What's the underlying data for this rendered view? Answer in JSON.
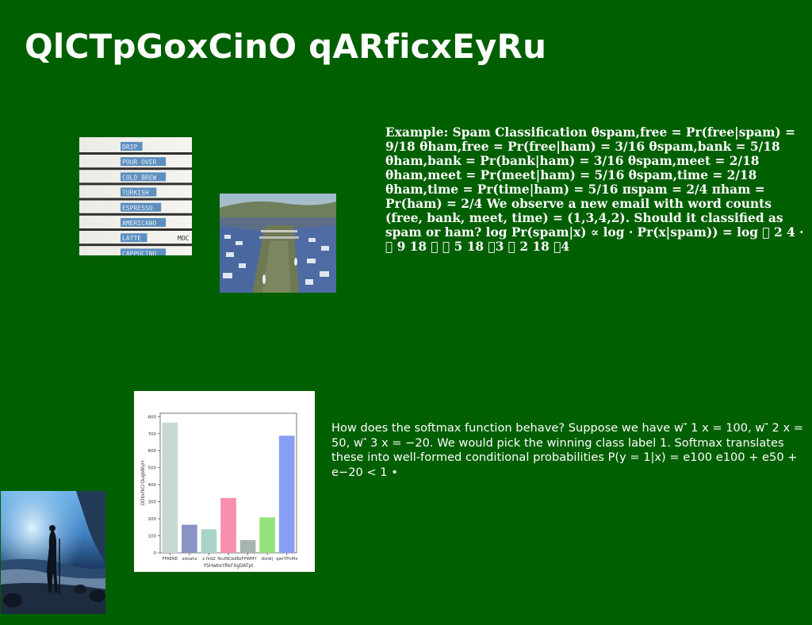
{
  "page": {
    "title": "QlCTpGoxCinO qARficxEyRu",
    "background_color": "#005f00"
  },
  "text_blocks": {
    "spam_example": "Example: Spam Classification θspam,free = Pr(free|spam) = 9/18 θham,free = Pr(free|ham) = 3/16 θspam,bank = 5/18 θham,bank = Pr(bank|ham) = 3/16 θspam,meet = 2/18 θham,meet = Pr(meet|ham) = 5/16 θspam,time = 2/18 θham,time = Pr(time|ham) = 5/16 πspam = 2/4 πham = Pr(ham) = 2/4 We observe a new email with word counts (free, bank, meet, time) = (1,3,4,2). Should it classified as spam or ham? log Pr(spam|x) ∝ log · Pr(x|spam)) = log 􏰀 2 4 · 􏰀 9 18 􏰁 􏰀 5 18 􏰁3 􏰀 2 18 􏰁4",
    "softmax": "How does the softmax function behave? Suppose we have w ⃗ 1 x = 100, w ⃗ 2 x = 50, w ⃗ 3 x = −20. We would pick the winning class label 1. Softmax translates these into well-formed conditional probabilities P(y = 1|x) = e100 e100 + e50 + e−20 < 1 •"
  },
  "images": {
    "coffee_menu": {
      "lines": [
        "DRIP",
        "POUR OVER",
        "COLD BREW",
        "TURKISH",
        "ESPRESSO",
        "AMERICANO",
        "LATTE",
        "CAPPUCINO"
      ],
      "side_label": "MOC"
    },
    "city_river": {},
    "beach_figure": {}
  },
  "chart_data": {
    "type": "bar",
    "categories": [
      "FFAERE",
      "xdvahz",
      "x lVdZ",
      "NczNCbdE",
      "oFPWMY",
      "dvldrj",
      "qwrYPnMx"
    ],
    "values": [
      765,
      165,
      138,
      322,
      75,
      208,
      688
    ],
    "colors": [
      "#c8d8d4",
      "#8a93c4",
      "#a8d4c8",
      "#f78fad",
      "#a7b5b0",
      "#93e37a",
      "#869ff5"
    ],
    "title": "",
    "xlabel": "YSHwbxYRkFXgDATpt",
    "ylabel": "DDbvfkCrOugbBlyH",
    "ylim": [
      0,
      820
    ],
    "yticks": [
      0,
      100,
      200,
      300,
      400,
      500,
      600,
      700,
      800
    ],
    "grid": false
  }
}
